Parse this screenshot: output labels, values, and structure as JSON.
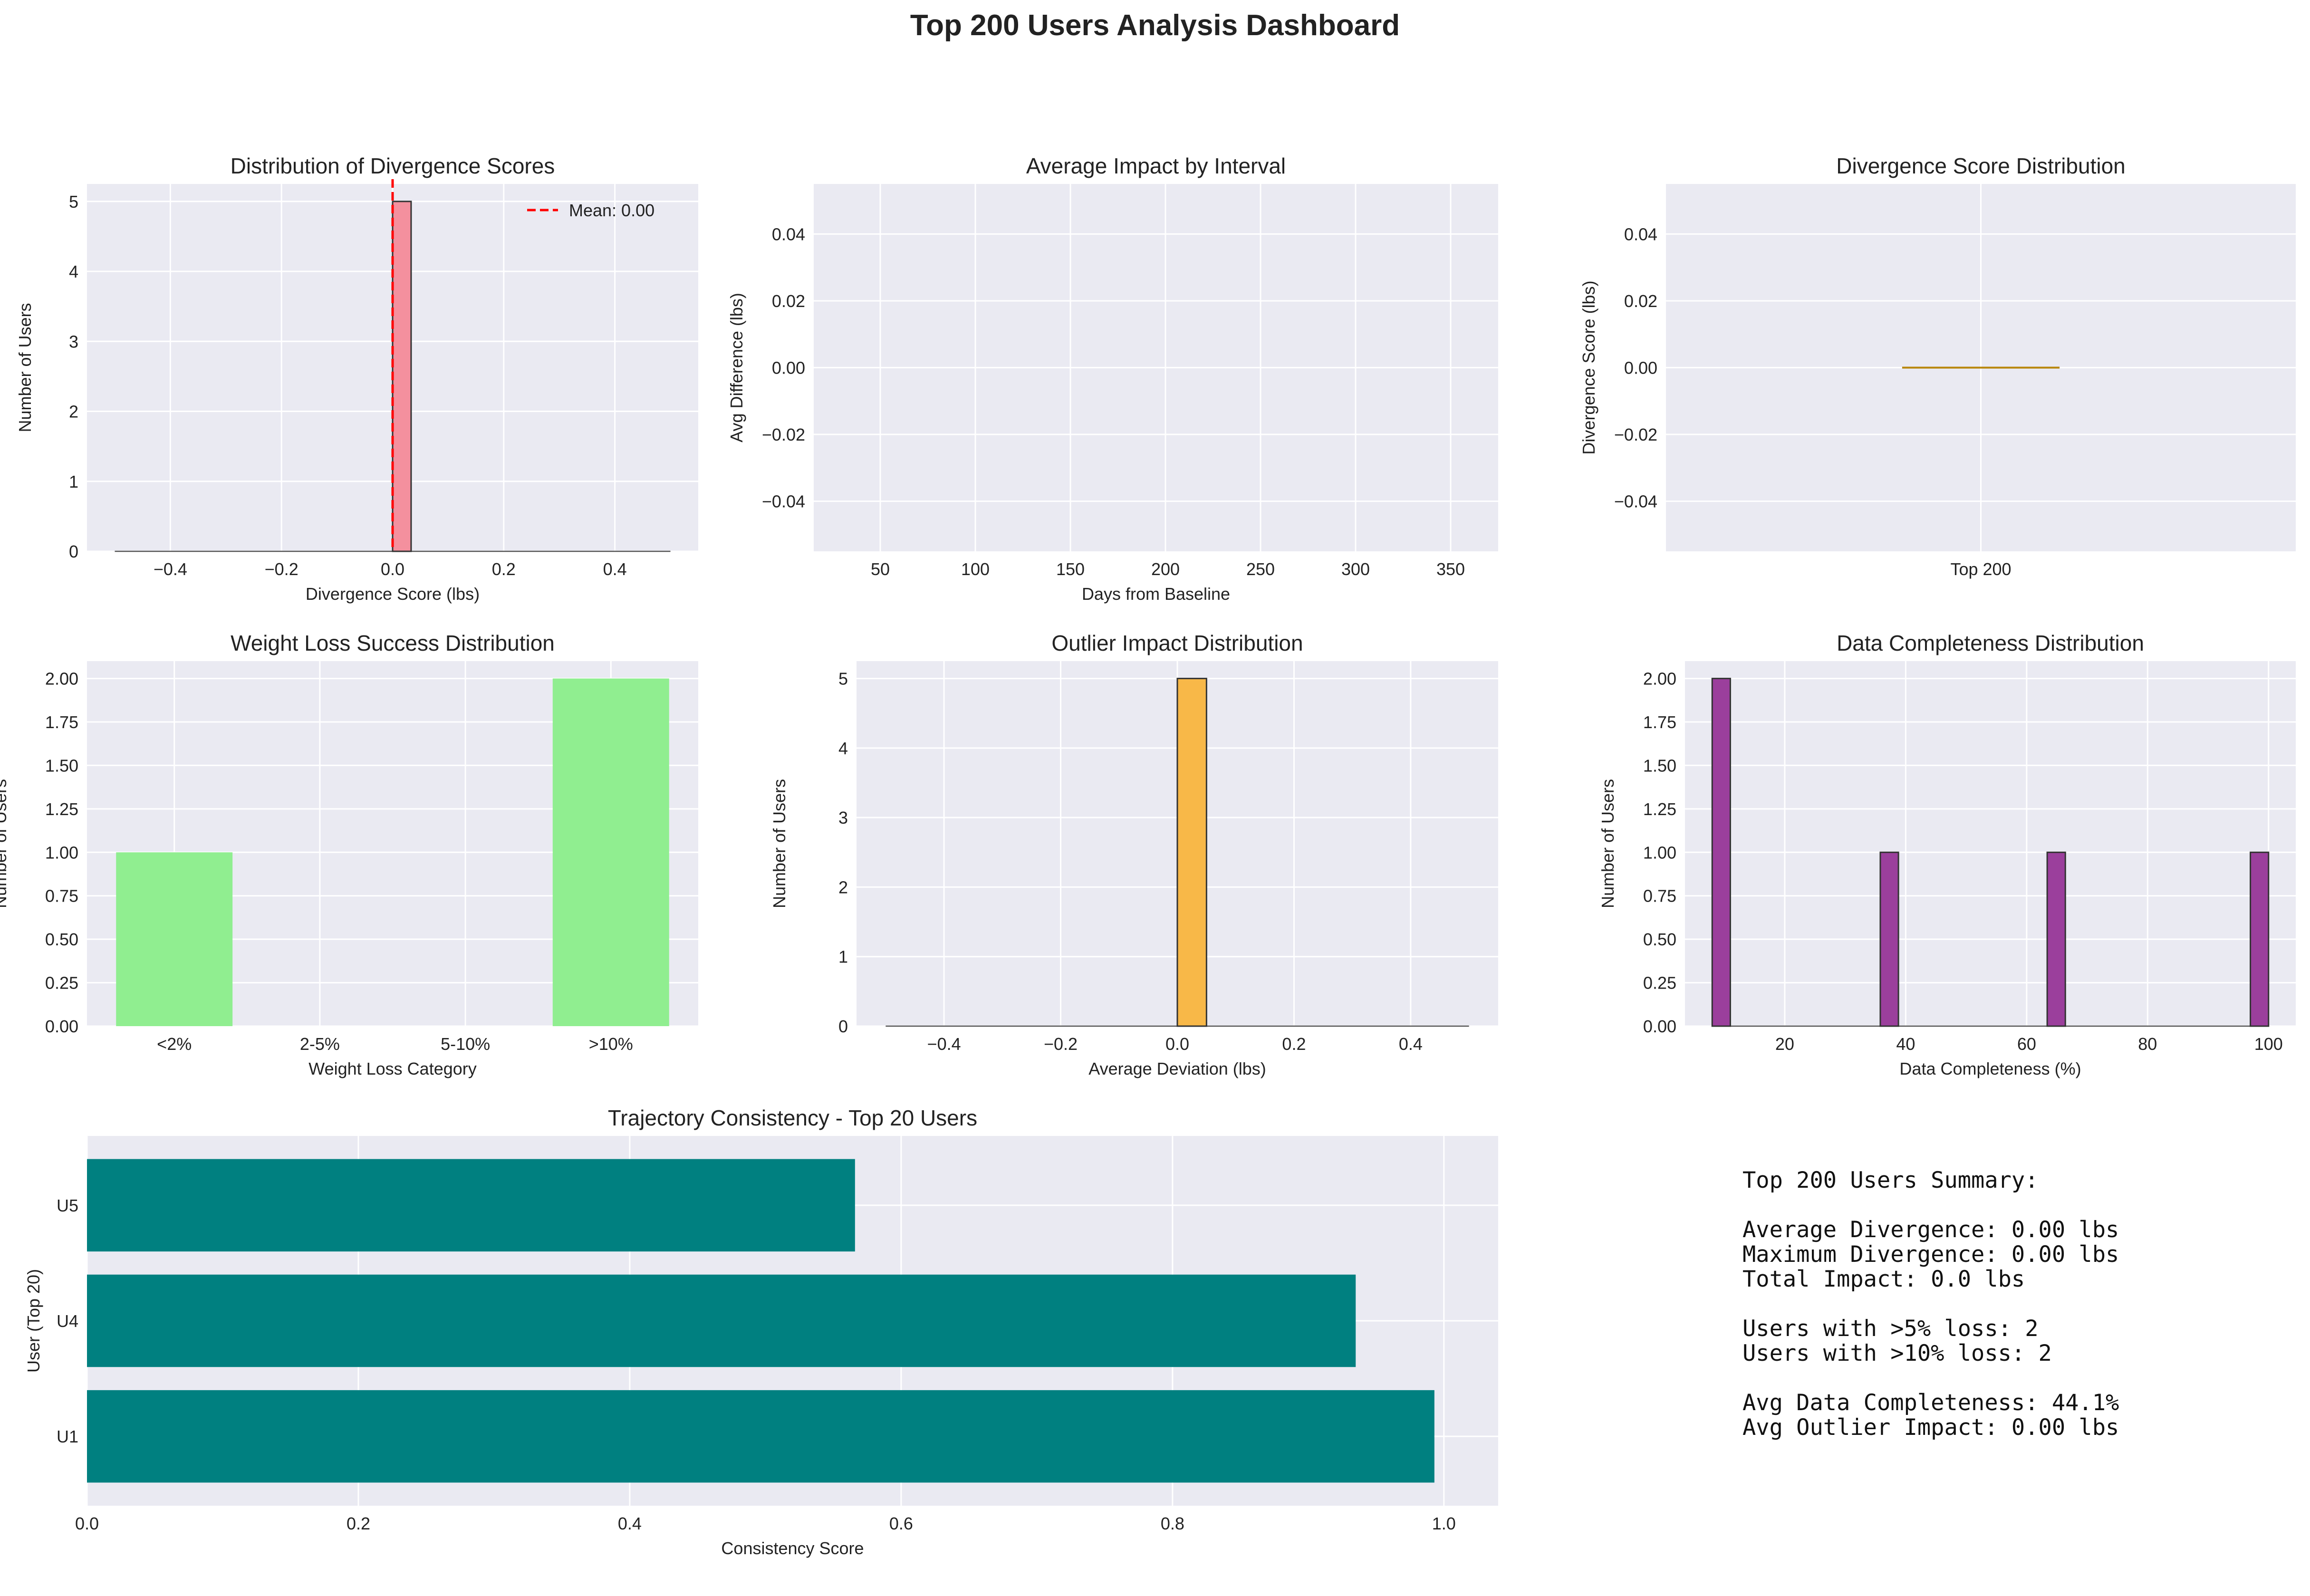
{
  "title": "Top 200 Users Analysis Dashboard",
  "colors": {
    "plot_bg": "#eaeaf2",
    "grid": "#ffffff",
    "mean_line": "#ff0000"
  },
  "chart_data": [
    {
      "id": "divergence-hist",
      "type": "bar",
      "title": "Distribution of Divergence Scores",
      "xlabel": "Divergence Score (lbs)",
      "ylabel": "Number of Users",
      "xlim": [
        -0.55,
        0.55
      ],
      "ylim": [
        0,
        5.25
      ],
      "xticks": [
        -0.4,
        -0.2,
        0.0,
        0.2,
        0.4
      ],
      "xtick_labels": [
        "−0.4",
        "−0.2",
        "0.0",
        "0.2",
        "0.4"
      ],
      "yticks": [
        0,
        1,
        2,
        3,
        4,
        5
      ],
      "ytick_labels": [
        "0",
        "1",
        "2",
        "3",
        "4",
        "5"
      ],
      "baseline": [
        -0.5,
        0.5
      ],
      "bars": [
        {
          "x0": 0.0,
          "x1": 0.0333,
          "value": 5
        }
      ],
      "color": "#f4909e",
      "edge": "#333333",
      "mean_line": {
        "x": 0.0,
        "label": "Mean: 0.00"
      },
      "legend": "top-right"
    },
    {
      "id": "interval-impact",
      "type": "line",
      "title": "Average Impact by Interval",
      "xlabel": "Days from Baseline",
      "ylabel": "Avg Difference (lbs)",
      "xlim": [
        15,
        375
      ],
      "ylim": [
        -0.055,
        0.055
      ],
      "xticks": [
        50,
        100,
        150,
        200,
        250,
        300,
        350
      ],
      "xtick_labels": [
        "50",
        "100",
        "150",
        "200",
        "250",
        "300",
        "350"
      ],
      "yticks": [
        -0.04,
        -0.02,
        0.0,
        0.02,
        0.04
      ],
      "ytick_labels": [
        "−0.04",
        "−0.02",
        "0.00",
        "0.02",
        "0.04"
      ],
      "series": []
    },
    {
      "id": "divergence-box",
      "type": "box",
      "title": "Divergence Score Distribution",
      "ylabel": "Divergence Score (lbs)",
      "xlim": [
        0.5,
        1.5
      ],
      "ylim": [
        -0.055,
        0.055
      ],
      "xticks": [
        1
      ],
      "xtick_labels": [
        "Top 200"
      ],
      "yticks": [
        -0.04,
        -0.02,
        0.0,
        0.02,
        0.04
      ],
      "ytick_labels": [
        "−0.04",
        "−0.02",
        "0.00",
        "0.02",
        "0.04"
      ],
      "box": {
        "x": 1,
        "width": 0.25,
        "median": 0.0
      },
      "color": "#b8860b"
    },
    {
      "id": "weight-loss",
      "type": "bar",
      "title": "Weight Loss Success Distribution",
      "xlabel": "Weight Loss Category",
      "ylabel": "Number of Users",
      "categories": [
        "<2%",
        "2-5%",
        "5-10%",
        ">10%"
      ],
      "values": [
        1,
        0,
        0,
        2
      ],
      "ylim": [
        0,
        2.1
      ],
      "yticks": [
        0,
        0.25,
        0.5,
        0.75,
        1.0,
        1.25,
        1.5,
        1.75,
        2.0
      ],
      "ytick_labels": [
        "0.00",
        "0.25",
        "0.50",
        "0.75",
        "1.00",
        "1.25",
        "1.50",
        "1.75",
        "2.00"
      ],
      "color": "#90ee90"
    },
    {
      "id": "outlier-impact",
      "type": "bar",
      "title": "Outlier Impact Distribution",
      "xlabel": "Average Deviation (lbs)",
      "ylabel": "Number of Users",
      "xlim": [
        -0.55,
        0.55
      ],
      "ylim": [
        0,
        5.25
      ],
      "xticks": [
        -0.4,
        -0.2,
        0.0,
        0.2,
        0.4
      ],
      "xtick_labels": [
        "−0.4",
        "−0.2",
        "0.0",
        "0.2",
        "0.4"
      ],
      "yticks": [
        0,
        1,
        2,
        3,
        4,
        5
      ],
      "ytick_labels": [
        "0",
        "1",
        "2",
        "3",
        "4",
        "5"
      ],
      "baseline": [
        -0.5,
        0.5
      ],
      "bars": [
        {
          "x0": 0.0,
          "x1": 0.05,
          "value": 5
        }
      ],
      "color": "#f8b848",
      "edge": "#333333"
    },
    {
      "id": "completeness",
      "type": "bar",
      "title": "Data Completeness Distribution",
      "xlabel": "Data Completeness (%)",
      "ylabel": "Number of Users",
      "xlim": [
        3.5,
        104.5
      ],
      "ylim": [
        0,
        2.1
      ],
      "xticks": [
        20,
        40,
        60,
        80,
        100
      ],
      "xtick_labels": [
        "20",
        "40",
        "60",
        "80",
        "100"
      ],
      "yticks": [
        0,
        0.25,
        0.5,
        0.75,
        1.0,
        1.25,
        1.5,
        1.75,
        2.0
      ],
      "ytick_labels": [
        "0.00",
        "0.25",
        "0.50",
        "0.75",
        "1.00",
        "1.25",
        "1.50",
        "1.75",
        "2.00"
      ],
      "baseline": [
        8,
        100
      ],
      "bars": [
        {
          "x0": 8.0,
          "x1": 11.0,
          "value": 2
        },
        {
          "x0": 35.8,
          "x1": 38.8,
          "value": 1
        },
        {
          "x0": 63.4,
          "x1": 66.4,
          "value": 1
        },
        {
          "x0": 97.0,
          "x1": 100.0,
          "value": 1
        }
      ],
      "color": "#9b3f9c",
      "edge": "#333333"
    },
    {
      "id": "consistency",
      "type": "bar",
      "orientation": "horizontal",
      "title": "Trajectory Consistency - Top 20 Users",
      "xlabel": "Consistency Score",
      "ylabel": "User (Top 20)",
      "categories": [
        "U1",
        "U4",
        "U5"
      ],
      "values": [
        0.993,
        0.935,
        0.566
      ],
      "xlim": [
        0,
        1.04
      ],
      "xticks": [
        0,
        0.2,
        0.4,
        0.6,
        0.8,
        1.0
      ],
      "xtick_labels": [
        "0.0",
        "0.2",
        "0.4",
        "0.6",
        "0.8",
        "1.0"
      ],
      "color": "#008080"
    }
  ],
  "summary": {
    "text": "Top 200 Users Summary:\n\nAverage Divergence: 0.00 lbs\nMaximum Divergence: 0.00 lbs\nTotal Impact: 0.0 lbs\n\nUsers with >5% loss: 2\nUsers with >10% loss: 2\n\nAvg Data Completeness: 44.1%\nAvg Outlier Impact: 0.00 lbs"
  }
}
